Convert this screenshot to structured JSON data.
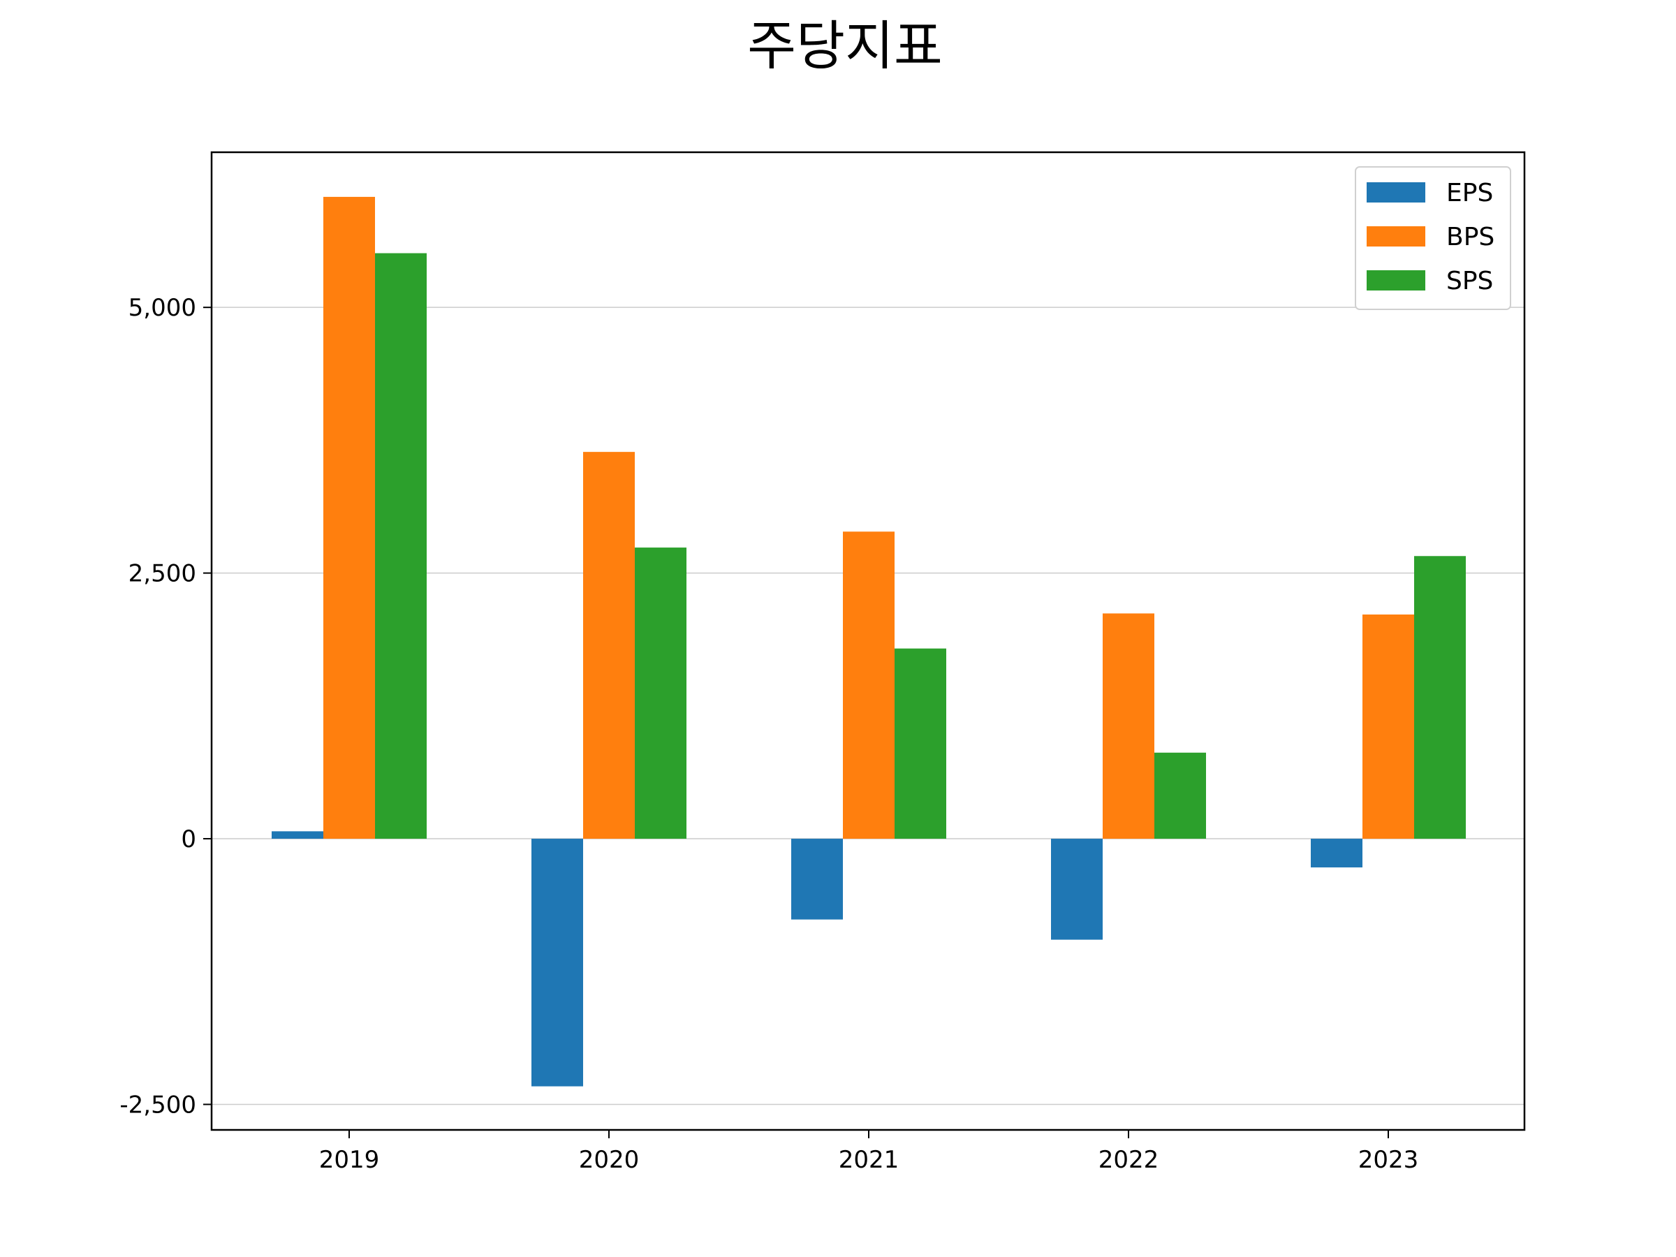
{
  "chart_data": {
    "type": "bar",
    "title": "주당지표",
    "xlabel": "",
    "ylabel": "",
    "categories": [
      "2019",
      "2020",
      "2021",
      "2022",
      "2023"
    ],
    "series": [
      {
        "name": "EPS",
        "color": "#1f77b4",
        "values": [
          70,
          -2330,
          -760,
          -950,
          -270
        ]
      },
      {
        "name": "BPS",
        "color": "#ff7f0e",
        "values": [
          6040,
          3640,
          2890,
          2120,
          2110
        ]
      },
      {
        "name": "SPS",
        "color": "#2ca02c",
        "values": [
          5510,
          2740,
          1790,
          810,
          2660
        ]
      }
    ],
    "ylim": [
      -2740,
      6460
    ],
    "yticks": [
      -2500,
      0,
      2500,
      5000
    ],
    "ytick_labels": [
      "-2,500",
      "0",
      "2,500",
      "5,000"
    ],
    "grid": "horizontal",
    "legend": "top-right"
  }
}
